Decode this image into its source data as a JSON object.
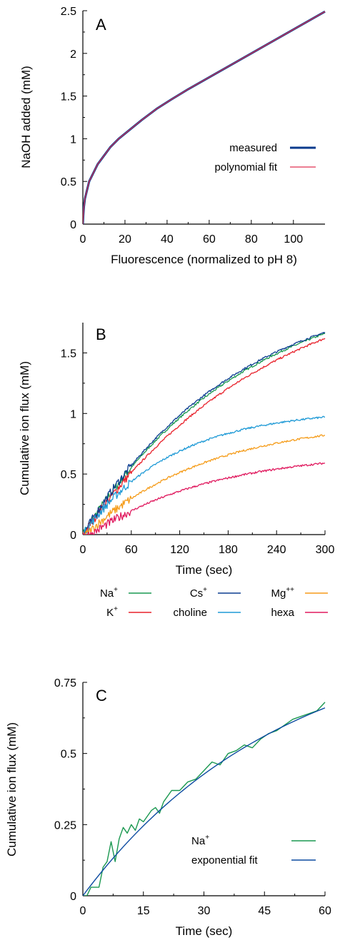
{
  "chart_data": [
    {
      "panel": "A",
      "type": "line",
      "xlabel": "Fluorescence (normalized to pH 8)",
      "ylabel": "NaOH added (mM)",
      "xlim": [
        0,
        115
      ],
      "ylim": [
        0,
        2.5
      ],
      "xticks": [
        0,
        20,
        40,
        60,
        80,
        100
      ],
      "yticks": [
        0,
        0.5,
        1,
        1.5,
        2,
        2.5
      ],
      "legend_position": "right",
      "series": [
        {
          "name": "measured",
          "color": "#0a3a8c",
          "x": [
            0,
            0.2,
            0.5,
            1,
            2,
            3,
            5,
            7,
            10,
            13,
            17,
            22,
            28,
            35,
            42,
            50,
            60,
            70,
            80,
            90,
            100,
            110,
            115
          ],
          "y": [
            0,
            0.1,
            0.2,
            0.3,
            0.4,
            0.5,
            0.6,
            0.7,
            0.8,
            0.9,
            1.0,
            1.1,
            1.22,
            1.35,
            1.46,
            1.58,
            1.72,
            1.86,
            2.0,
            2.14,
            2.28,
            2.42,
            2.49
          ]
        },
        {
          "name": "polynomial fit",
          "color": "#e03050",
          "x": [
            0,
            0.2,
            0.5,
            1,
            2,
            3,
            5,
            7,
            10,
            13,
            17,
            22,
            28,
            35,
            42,
            50,
            60,
            70,
            80,
            90,
            100,
            110,
            115
          ],
          "y": [
            0,
            0.1,
            0.2,
            0.3,
            0.4,
            0.5,
            0.6,
            0.7,
            0.8,
            0.9,
            1.0,
            1.1,
            1.22,
            1.35,
            1.46,
            1.58,
            1.72,
            1.86,
            2.0,
            2.14,
            2.28,
            2.42,
            2.49
          ]
        }
      ]
    },
    {
      "panel": "B",
      "type": "line",
      "xlabel": "Time (sec)",
      "ylabel": "Cumulative ion flux (mM)",
      "xlim": [
        0,
        300
      ],
      "ylim": [
        0,
        1.75
      ],
      "xticks": [
        0,
        60,
        120,
        180,
        240,
        300
      ],
      "yticks": [
        0,
        0.5,
        1,
        1.5
      ],
      "legend_position": "bottom",
      "series": [
        {
          "name": "Na",
          "sup": "+",
          "color": "#1a9850",
          "x": [
            0,
            300
          ],
          "y": [
            0,
            1.66
          ],
          "tau": 200,
          "delay": 0
        },
        {
          "name": "K",
          "sup": "+",
          "color": "#e8202a",
          "x": [
            0,
            300
          ],
          "y": [
            0,
            1.62
          ],
          "tau": 230,
          "delay": 0
        },
        {
          "name": "Cs",
          "sup": "+",
          "color": "#0b3d91",
          "x": [
            0,
            300
          ],
          "y": [
            0,
            1.67
          ],
          "tau": 190,
          "delay": 0
        },
        {
          "name": "choline",
          "sup": "",
          "color": "#1f9ad6",
          "x": [
            0,
            300
          ],
          "y": [
            0,
            0.97
          ],
          "tau": 110,
          "delay": 0
        },
        {
          "name": "Mg",
          "sup": "++",
          "color": "#f59c1a",
          "x": [
            0,
            300
          ],
          "y": [
            0,
            0.82
          ],
          "tau": 150,
          "delay": 4
        },
        {
          "name": "hexa",
          "sup": "",
          "color": "#e0195e",
          "x": [
            0,
            300
          ],
          "y": [
            0,
            0.59
          ],
          "tau": 150,
          "delay": 10
        }
      ]
    },
    {
      "panel": "C",
      "type": "line",
      "xlabel": "Time (sec)",
      "ylabel": "Cumulative ion flux (mM)",
      "xlim": [
        0,
        60
      ],
      "ylim": [
        0,
        0.75
      ],
      "xticks": [
        0,
        15,
        30,
        45,
        60
      ],
      "yticks": [
        0,
        0.25,
        0.5,
        0.75
      ],
      "legend_position": "bottom-right",
      "series": [
        {
          "name": "Na",
          "sup": "+",
          "color": "#1a9850",
          "x": [
            0,
            1,
            2,
            3,
            4,
            5,
            6,
            7,
            8,
            9,
            10,
            11,
            12,
            13,
            14,
            15,
            16,
            17,
            18,
            19,
            20,
            22,
            24,
            26,
            28,
            30,
            32,
            34,
            36,
            38,
            40,
            42,
            44,
            46,
            48,
            50,
            52,
            54,
            56,
            58,
            60
          ],
          "y": [
            0,
            0,
            0.03,
            0.03,
            0.03,
            0.1,
            0.12,
            0.19,
            0.12,
            0.2,
            0.24,
            0.22,
            0.25,
            0.23,
            0.27,
            0.26,
            0.28,
            0.3,
            0.31,
            0.29,
            0.33,
            0.37,
            0.37,
            0.4,
            0.41,
            0.44,
            0.47,
            0.46,
            0.5,
            0.51,
            0.53,
            0.52,
            0.55,
            0.57,
            0.58,
            0.6,
            0.62,
            0.63,
            0.64,
            0.65,
            0.68
          ]
        },
        {
          "name": "exponential fit",
          "sup": "",
          "color": "#0b4aa0",
          "x": [
            0,
            5,
            10,
            15,
            20,
            25,
            30,
            35,
            40,
            45,
            50,
            55,
            60
          ],
          "y": [
            0,
            0.095,
            0.18,
            0.255,
            0.32,
            0.38,
            0.435,
            0.485,
            0.528,
            0.568,
            0.604,
            0.636,
            0.665
          ]
        }
      ]
    }
  ],
  "legend_labels": {
    "A": [
      "measured",
      "polynomial fit"
    ],
    "C": [
      "Na",
      "exponential fit"
    ]
  }
}
